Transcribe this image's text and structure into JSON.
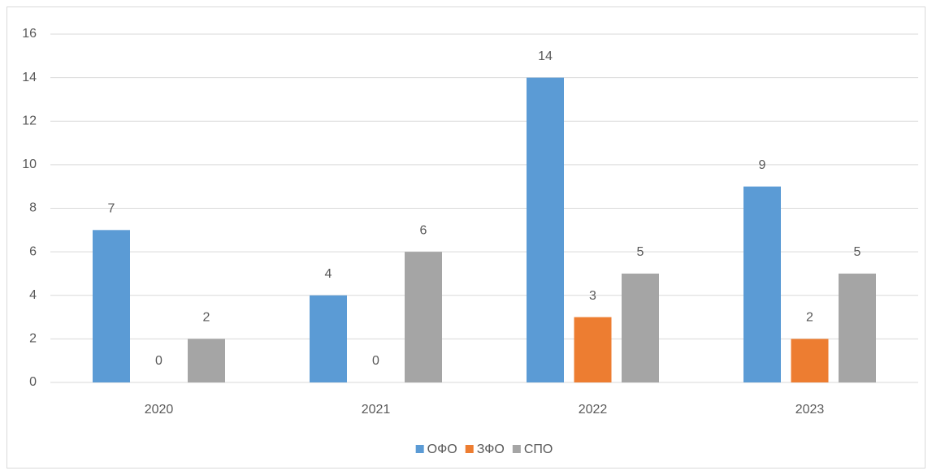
{
  "chart_data": {
    "type": "bar",
    "categories": [
      "2020",
      "2021",
      "2022",
      "2023"
    ],
    "series": [
      {
        "name": "ОФО",
        "color": "#5b9bd5",
        "values": [
          7,
          4,
          14,
          9
        ]
      },
      {
        "name": "ЗФО",
        "color": "#ed7d31",
        "values": [
          0,
          0,
          3,
          2
        ]
      },
      {
        "name": "СПО",
        "color": "#a5a5a5",
        "values": [
          2,
          6,
          5,
          5
        ]
      }
    ],
    "ylim": [
      0,
      16
    ],
    "yticks": [
      0,
      2,
      4,
      6,
      8,
      10,
      12,
      14,
      16
    ],
    "grid": true,
    "legend": "bottom",
    "data_labels": true
  }
}
